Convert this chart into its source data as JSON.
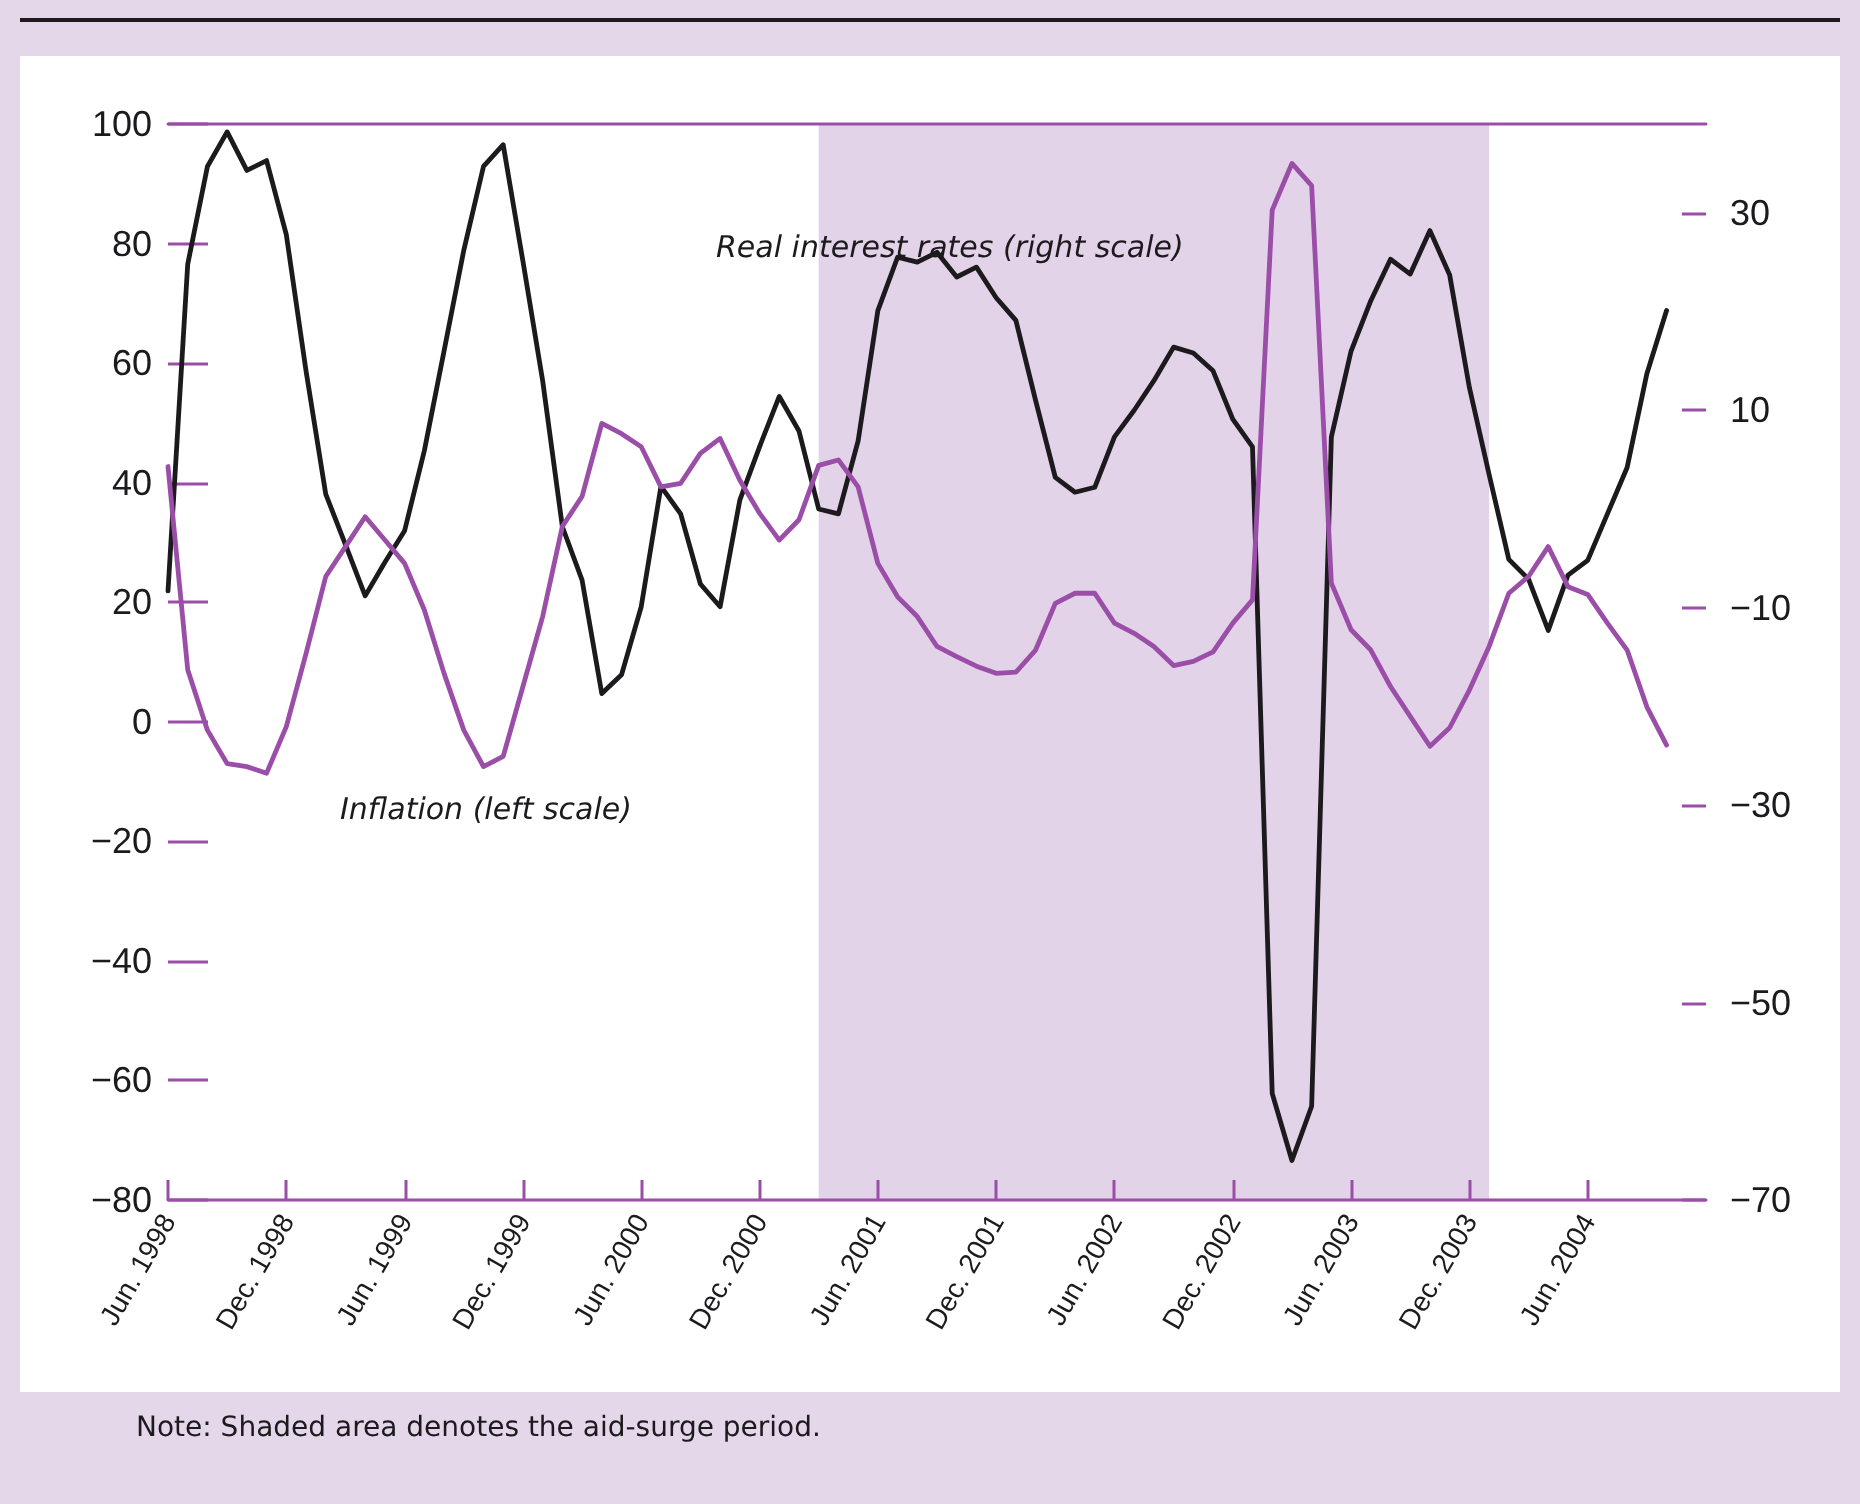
{
  "chart_data": {
    "type": "line",
    "x": [
      "1998-06",
      "1998-07",
      "1998-08",
      "1998-09",
      "1998-10",
      "1998-11",
      "1998-12",
      "1999-01",
      "1999-02",
      "1999-03",
      "1999-04",
      "1999-05",
      "1999-06",
      "1999-07",
      "1999-08",
      "1999-09",
      "1999-10",
      "1999-11",
      "1999-12",
      "2000-01",
      "2000-02",
      "2000-03",
      "2000-04",
      "2000-05",
      "2000-06",
      "2000-07",
      "2000-08",
      "2000-09",
      "2000-10",
      "2000-11",
      "2000-12",
      "2001-01",
      "2001-02",
      "2001-03",
      "2001-04",
      "2001-05",
      "2001-06",
      "2001-07",
      "2001-08",
      "2001-09",
      "2001-10",
      "2001-11",
      "2001-12",
      "2002-01",
      "2002-02",
      "2002-03",
      "2002-04",
      "2002-05",
      "2002-06",
      "2002-07",
      "2002-08",
      "2002-09",
      "2002-10",
      "2002-11",
      "2002-12",
      "2003-01",
      "2003-02",
      "2003-03",
      "2003-04",
      "2003-05",
      "2003-06",
      "2003-07",
      "2003-08",
      "2003-09",
      "2003-10",
      "2003-11",
      "2003-12",
      "2004-01",
      "2004-02",
      "2004-03",
      "2004-04",
      "2004-05",
      "2004-06",
      "2004-07",
      "2004-08",
      "2004-09",
      "2004-10"
    ],
    "series": [
      {
        "name": "Real interest rates (right scale)",
        "color": "#1c1a1d",
        "axis": "y2",
        "values": [
          -8.3,
          24.8,
          34.7,
          38.2,
          34.3,
          35.3,
          27.8,
          14,
          1.5,
          -3.6,
          -8.8,
          -5.4,
          -2.2,
          5.9,
          16,
          26.2,
          34.7,
          36.9,
          25.1,
          13,
          -1.8,
          -7.2,
          -18.7,
          -16.8,
          -9.9,
          2.3,
          -0.5,
          -7.6,
          -9.9,
          0.9,
          6.3,
          11.4,
          7.9,
          0,
          -0.5,
          6.9,
          20.1,
          25.5,
          25,
          26,
          23.5,
          24.5,
          21.4,
          19.1,
          11,
          3.2,
          1.7,
          2.2,
          7.3,
          10,
          13,
          16.4,
          15.8,
          14,
          9.1,
          6.3,
          -59.2,
          -66,
          -60.5,
          7.3,
          16,
          21.1,
          25.3,
          23.8,
          28.2,
          23.7,
          12.3,
          3.5,
          -5.1,
          -7.1,
          -12.3,
          -6.7,
          -5.2,
          -0.5,
          4.2,
          13.7,
          20.1
        ]
      },
      {
        "name": "Inflation (left scale)",
        "color": "#9b4ea8",
        "values": [
          42.7,
          8.7,
          -1.4,
          -7,
          -7.5,
          -8.6,
          -0.8,
          11.4,
          24.3,
          29.3,
          34.3,
          30.4,
          26.5,
          18.7,
          8.1,
          -1.4,
          -7.5,
          -5.8,
          5.9,
          17.6,
          32.7,
          37.7,
          49.9,
          48.2,
          46,
          39.3,
          39.9,
          44.9,
          47.4,
          40.4,
          34.9,
          30.4,
          33.8,
          42.9,
          43.8,
          39.3,
          26.5,
          20.9,
          17.6,
          12.6,
          10.9,
          9.3,
          8.1,
          8.3,
          12,
          19.8,
          21.5,
          21.5,
          16.5,
          14.8,
          12.6,
          9.4,
          10.1,
          11.7,
          16.5,
          20.4,
          85.6,
          93.4,
          89.7,
          23.2,
          15.4,
          12,
          5.9,
          0.9,
          -4.1,
          -1,
          5.3,
          12.6,
          21.5,
          24.3,
          29.3,
          22.6,
          21.3,
          16.5,
          12,
          2.5,
          -3.9
        ]
      }
    ],
    "xlim": [
      "1998-06",
      "2004-12"
    ],
    "xticks": [
      {
        "value": "1998-06",
        "label": "Jun. 1998"
      },
      {
        "value": "1998-12",
        "label": "Dec. 1998"
      },
      {
        "value": "1999-06",
        "label": "Jun. 1999"
      },
      {
        "value": "1999-12",
        "label": "Dec. 1999"
      },
      {
        "value": "2000-06",
        "label": "Jun. 2000"
      },
      {
        "value": "2000-12",
        "label": "Dec. 2000"
      },
      {
        "value": "2001-06",
        "label": "Jun. 2001"
      },
      {
        "value": "2001-12",
        "label": "Dec. 2001"
      },
      {
        "value": "2002-06",
        "label": "Jun. 2002"
      },
      {
        "value": "2002-12",
        "label": "Dec. 2002"
      },
      {
        "value": "2003-06",
        "label": "Jun. 2003"
      },
      {
        "value": "2003-12",
        "label": "Dec. 2003"
      },
      {
        "value": "2004-06",
        "label": "Jun. 2004"
      }
    ],
    "ylim": [
      -80,
      100
    ],
    "yticks": [
      -80,
      -60,
      -40,
      -20,
      0,
      20,
      40,
      60,
      80,
      100
    ],
    "y2lim": [
      -70,
      39
    ],
    "y2ticks": [
      -70,
      -50,
      -30,
      -10,
      10,
      30
    ],
    "bands": [
      {
        "axis": "x",
        "from": "2001-03",
        "to": "2004-01",
        "color": "#e3d3e8"
      }
    ],
    "annotations": [
      "Note: Shaded area denotes the aid-surge period."
    ],
    "grid": false,
    "legend": false,
    "marker": "none",
    "line_style": "solid"
  }
}
